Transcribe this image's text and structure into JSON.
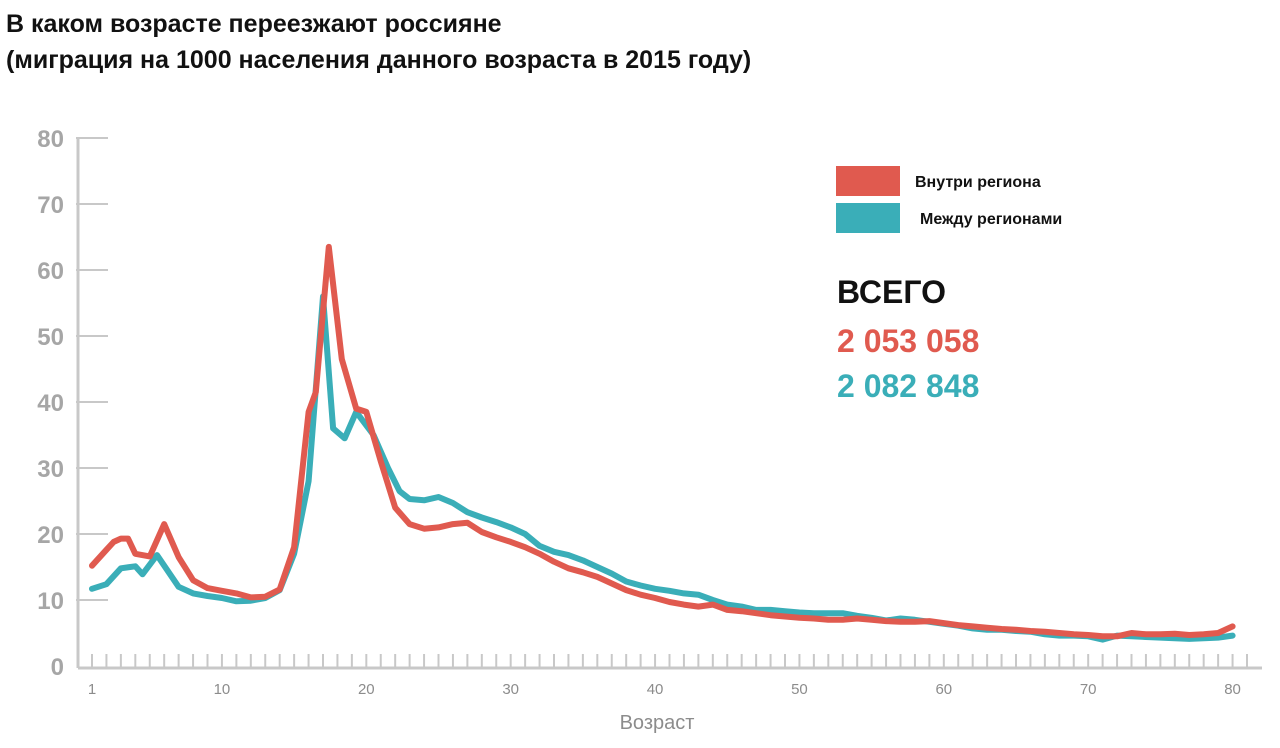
{
  "title_line1": "В каком возрасте переезжают россияне",
  "title_line2": "(миграция на 1000 населения данного возраста в 2015 году)",
  "totals": {
    "label": "ВСЕГО",
    "within_region": "2 053 058",
    "between_regions": "2 082 848"
  },
  "chart_data": {
    "type": "line",
    "xlabel": "Возраст",
    "ylabel": "",
    "xlim": [
      1,
      81
    ],
    "ylim": [
      0,
      80
    ],
    "x_ticks": [
      1,
      10,
      20,
      30,
      40,
      50,
      60,
      70,
      80
    ],
    "y_ticks": [
      0,
      10,
      20,
      30,
      40,
      50,
      60,
      70,
      80
    ],
    "legend_position": "top-right",
    "series": [
      {
        "name": "Внутри региона",
        "color": "#e05a4f",
        "points": [
          [
            1,
            15.2
          ],
          [
            2,
            17.6
          ],
          [
            2.5,
            18.8
          ],
          [
            3,
            19.3
          ],
          [
            3.5,
            19.3
          ],
          [
            4,
            17.0
          ],
          [
            5,
            16.6
          ],
          [
            6,
            21.5
          ],
          [
            7,
            16.5
          ],
          [
            8,
            13.0
          ],
          [
            9,
            11.8
          ],
          [
            10,
            11.4
          ],
          [
            11,
            11.0
          ],
          [
            12,
            10.4
          ],
          [
            13,
            10.5
          ],
          [
            14,
            11.6
          ],
          [
            15,
            18.0
          ],
          [
            16,
            38.5
          ],
          [
            16.5,
            41.5
          ],
          [
            17.4,
            63.5
          ],
          [
            18.3,
            46.5
          ],
          [
            19.3,
            39.0
          ],
          [
            20,
            38.5
          ],
          [
            21,
            31.0
          ],
          [
            22,
            24.0
          ],
          [
            23,
            21.5
          ],
          [
            24,
            20.8
          ],
          [
            25,
            21.0
          ],
          [
            26,
            21.5
          ],
          [
            27,
            21.7
          ],
          [
            28,
            20.3
          ],
          [
            29,
            19.5
          ],
          [
            30,
            18.8
          ],
          [
            31,
            18.0
          ],
          [
            32,
            17.0
          ],
          [
            33,
            15.8
          ],
          [
            34,
            14.8
          ],
          [
            35,
            14.2
          ],
          [
            36,
            13.5
          ],
          [
            37,
            12.5
          ],
          [
            38,
            11.5
          ],
          [
            39,
            10.8
          ],
          [
            40,
            10.3
          ],
          [
            41,
            9.7
          ],
          [
            42,
            9.3
          ],
          [
            43,
            9.0
          ],
          [
            44,
            9.3
          ],
          [
            45,
            8.5
          ],
          [
            46,
            8.3
          ],
          [
            47,
            8.0
          ],
          [
            48,
            7.7
          ],
          [
            49,
            7.5
          ],
          [
            50,
            7.3
          ],
          [
            51,
            7.2
          ],
          [
            52,
            7.0
          ],
          [
            53,
            7.0
          ],
          [
            54,
            7.2
          ],
          [
            55,
            7.0
          ],
          [
            56,
            6.8
          ],
          [
            57,
            6.7
          ],
          [
            58,
            6.7
          ],
          [
            59,
            6.8
          ],
          [
            60,
            6.5
          ],
          [
            61,
            6.2
          ],
          [
            62,
            6.0
          ],
          [
            63,
            5.8
          ],
          [
            64,
            5.6
          ],
          [
            65,
            5.5
          ],
          [
            66,
            5.3
          ],
          [
            67,
            5.2
          ],
          [
            68,
            5.0
          ],
          [
            69,
            4.8
          ],
          [
            70,
            4.7
          ],
          [
            71,
            4.5
          ],
          [
            72,
            4.5
          ],
          [
            73,
            5.0
          ],
          [
            74,
            4.8
          ],
          [
            75,
            4.8
          ],
          [
            76,
            4.9
          ],
          [
            77,
            4.7
          ],
          [
            78,
            4.8
          ],
          [
            79,
            5.0
          ],
          [
            80,
            6.0
          ]
        ]
      },
      {
        "name": "Между регионами",
        "color": "#3aaeb8",
        "points": [
          [
            1,
            11.7
          ],
          [
            2,
            12.4
          ],
          [
            3,
            14.8
          ],
          [
            4,
            15.1
          ],
          [
            4.5,
            13.9
          ],
          [
            5.5,
            16.8
          ],
          [
            7,
            12.0
          ],
          [
            8,
            11.0
          ],
          [
            9,
            10.6
          ],
          [
            10,
            10.3
          ],
          [
            11,
            9.8
          ],
          [
            12,
            9.9
          ],
          [
            13,
            10.3
          ],
          [
            14,
            11.5
          ],
          [
            15,
            17.0
          ],
          [
            16,
            28.0
          ],
          [
            17,
            56.0
          ],
          [
            17.7,
            36.0
          ],
          [
            18.5,
            34.5
          ],
          [
            19.3,
            38.5
          ],
          [
            20.5,
            35.0
          ],
          [
            21.5,
            30.0
          ],
          [
            22.3,
            26.5
          ],
          [
            23,
            25.3
          ],
          [
            24,
            25.1
          ],
          [
            25,
            25.6
          ],
          [
            26,
            24.7
          ],
          [
            27,
            23.3
          ],
          [
            28,
            22.5
          ],
          [
            29,
            21.8
          ],
          [
            30,
            21.0
          ],
          [
            31,
            20.0
          ],
          [
            32,
            18.2
          ],
          [
            33,
            17.3
          ],
          [
            34,
            16.8
          ],
          [
            35,
            16.0
          ],
          [
            36,
            15.0
          ],
          [
            37,
            14.0
          ],
          [
            38,
            12.8
          ],
          [
            39,
            12.2
          ],
          [
            40,
            11.7
          ],
          [
            41,
            11.4
          ],
          [
            42,
            11.0
          ],
          [
            43,
            10.8
          ],
          [
            44,
            10.0
          ],
          [
            45,
            9.3
          ],
          [
            46,
            9.0
          ],
          [
            47,
            8.5
          ],
          [
            48,
            8.5
          ],
          [
            49,
            8.3
          ],
          [
            50,
            8.1
          ],
          [
            51,
            8.0
          ],
          [
            52,
            8.0
          ],
          [
            53,
            8.0
          ],
          [
            54,
            7.6
          ],
          [
            55,
            7.3
          ],
          [
            56,
            6.9
          ],
          [
            57,
            7.2
          ],
          [
            58,
            7.0
          ],
          [
            59,
            6.7
          ],
          [
            60,
            6.4
          ],
          [
            61,
            6.1
          ],
          [
            62,
            5.7
          ],
          [
            63,
            5.5
          ],
          [
            64,
            5.5
          ],
          [
            65,
            5.3
          ],
          [
            66,
            5.2
          ],
          [
            67,
            4.8
          ],
          [
            68,
            4.6
          ],
          [
            69,
            4.6
          ],
          [
            70,
            4.5
          ],
          [
            71,
            4.0
          ],
          [
            72,
            4.6
          ],
          [
            73,
            4.5
          ],
          [
            74,
            4.4
          ],
          [
            75,
            4.3
          ],
          [
            76,
            4.2
          ],
          [
            77,
            4.1
          ],
          [
            79,
            4.3
          ],
          [
            80,
            4.6
          ]
        ]
      }
    ]
  }
}
